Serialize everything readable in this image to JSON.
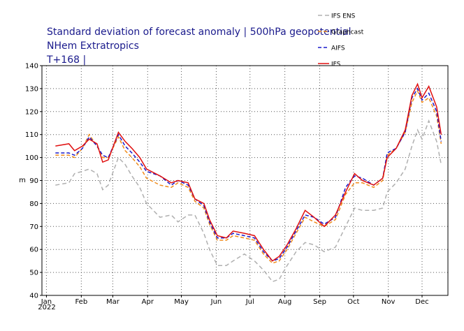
{
  "chart_data": {
    "type": "line",
    "title": [
      "Standard deviation of forecast anomaly | 500hPa geopotential",
      "NHem Extratropics",
      "T+168 |"
    ],
    "y_label": "m",
    "year_label": "2022",
    "x": [
      8,
      20,
      25,
      32,
      38,
      45,
      50,
      55,
      64,
      70,
      76,
      83,
      89,
      101,
      111,
      117,
      126,
      132,
      140,
      145,
      152,
      160,
      166,
      176,
      185,
      193,
      201,
      207,
      214,
      222,
      230,
      238,
      247,
      257,
      266,
      274,
      281,
      291,
      299,
      303,
      311,
      319,
      325,
      330,
      334,
      340,
      347,
      351
    ],
    "series": [
      {
        "name": "IFS ENS",
        "color": "#b0b0b0",
        "dash": "6,4",
        "values": [
          88,
          89,
          93,
          94,
          95,
          93,
          86,
          88,
          100,
          97,
          92,
          87,
          80,
          74,
          75,
          72,
          75,
          75,
          67,
          60,
          53,
          53,
          55,
          58,
          55,
          51,
          46,
          47,
          53,
          59,
          63,
          62,
          59,
          61,
          70,
          78,
          77,
          77,
          78,
          85,
          89,
          95,
          105,
          112,
          108,
          116,
          107,
          97
        ]
      },
      {
        "name": "Graphcast",
        "color": "#f08c1a",
        "dash": "5,3",
        "values": [
          101,
          101,
          100,
          104,
          110,
          105,
          100,
          100,
          109,
          103,
          100,
          96,
          91,
          88,
          87,
          89,
          87,
          81,
          78,
          71,
          64,
          64,
          66,
          65,
          64,
          58,
          54,
          55,
          60,
          67,
          74,
          72,
          70,
          73,
          84,
          89,
          89,
          87,
          90,
          101,
          104,
          111,
          124,
          129,
          124,
          126,
          118,
          106
        ]
      },
      {
        "name": "AIFS",
        "color": "#1a1acc",
        "dash": "5,3",
        "values": [
          102,
          102,
          101,
          104,
          109,
          105,
          101,
          100,
          110,
          105,
          102,
          98,
          94,
          92,
          88,
          90,
          88,
          82,
          79,
          72,
          65,
          65,
          67,
          66,
          65,
          59,
          55,
          56,
          61,
          68,
          75,
          74,
          71,
          74,
          87,
          92,
          91,
          88,
          91,
          102,
          104,
          111,
          126,
          130,
          125,
          128,
          120,
          107
        ]
      },
      {
        "name": "IFS",
        "color": "#e01010",
        "dash": "",
        "values": [
          105,
          106,
          103,
          105,
          108,
          106,
          98,
          99,
          111,
          107,
          104,
          100,
          95,
          92,
          89,
          90,
          89,
          82,
          80,
          73,
          66,
          65,
          68,
          67,
          66,
          60,
          55,
          57,
          62,
          69,
          77,
          74,
          70,
          75,
          85,
          93,
          90,
          88,
          91,
          100,
          104,
          112,
          127,
          132,
          126,
          131,
          122,
          110
        ]
      }
    ],
    "xlim": [
      -4,
      357
    ],
    "xticks": [
      {
        "value": 0,
        "label": "Jan"
      },
      {
        "value": 31,
        "label": "Feb"
      },
      {
        "value": 59,
        "label": "Mar"
      },
      {
        "value": 90,
        "label": "Apr"
      },
      {
        "value": 120,
        "label": "May"
      },
      {
        "value": 151,
        "label": "Jun"
      },
      {
        "value": 181,
        "label": "Jul"
      },
      {
        "value": 212,
        "label": "Aug"
      },
      {
        "value": 243,
        "label": "Sep"
      },
      {
        "value": 273,
        "label": "Oct"
      },
      {
        "value": 304,
        "label": "Nov"
      },
      {
        "value": 334,
        "label": "Dec"
      }
    ],
    "ylim": [
      40,
      140
    ],
    "yticks": [
      40,
      50,
      60,
      70,
      80,
      90,
      100,
      110,
      120,
      130,
      140
    ],
    "grid": true
  }
}
